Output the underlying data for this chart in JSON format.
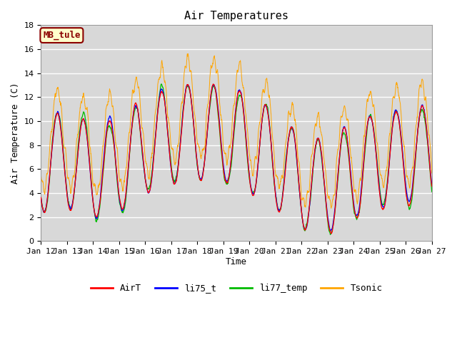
{
  "title": "Air Temperatures",
  "ylabel": "Air Temperature (C)",
  "xlabel": "Time",
  "ylim": [
    0,
    18
  ],
  "colors": {
    "AirT": "#ff0000",
    "li75_t": "#0000ff",
    "li77_temp": "#00bb00",
    "Tsonic": "#ffa500"
  },
  "annotation_text": "MB_tule",
  "annotation_color": "#8b0000",
  "annotation_bg": "#ffffcc",
  "x_tick_labels": [
    "Jan 12",
    "Jan 13",
    "Jan 14",
    "Jan 15",
    "Jan 16",
    "Jan 17",
    "Jan 18",
    "Jan 19",
    "Jan 20",
    "Jan 21",
    "Jan 22",
    "Jan 23",
    "Jan 24",
    "Jan 25",
    "Jan 26",
    "Jan 27"
  ],
  "legend_labels": [
    "AirT",
    "li75_t",
    "li77_temp",
    "Tsonic"
  ],
  "title_fontsize": 11,
  "axis_fontsize": 9,
  "tick_fontsize": 8
}
